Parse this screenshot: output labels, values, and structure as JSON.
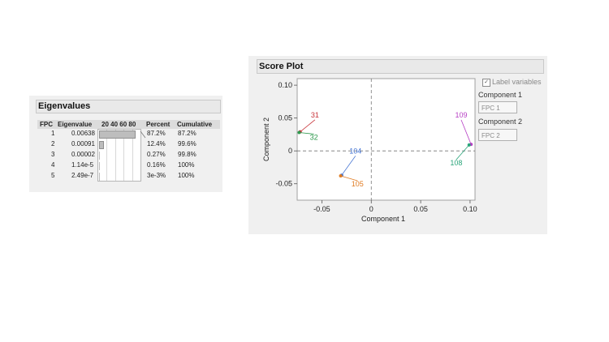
{
  "eigen": {
    "title": "Eigenvalues",
    "headers": {
      "fpc": "FPC",
      "eigenvalue": "Eigenvalue",
      "bar_scale": "20 40 60 80",
      "percent": "Percent",
      "cumulative": "Cumulative"
    },
    "rows": [
      {
        "fpc": "1",
        "eigenvalue": "0.00638",
        "percent": "87.2%",
        "cumulative": "87.2%",
        "pct_value": 87.2
      },
      {
        "fpc": "2",
        "eigenvalue": "0.00091",
        "percent": "12.4%",
        "cumulative": "99.6%",
        "pct_value": 12.4
      },
      {
        "fpc": "3",
        "eigenvalue": "0.00002",
        "percent": "0.27%",
        "cumulative": "99.8%",
        "pct_value": 0.27
      },
      {
        "fpc": "4",
        "eigenvalue": "1.14e-5",
        "percent": "0.16%",
        "cumulative": "100%",
        "pct_value": 0.16
      },
      {
        "fpc": "5",
        "eigenvalue": "2.49e-7",
        "percent": "3e-3%",
        "cumulative": "100%",
        "pct_value": 0.003
      }
    ]
  },
  "score": {
    "title": "Score Plot",
    "label_variables": "Label variables",
    "label_variables_checked": true,
    "component1_label": "Component 1",
    "component1_value": "FPC 1",
    "component2_label": "Component 2",
    "component2_value": "FPC 2"
  },
  "chart_data": {
    "type": "scatter",
    "xlabel": "Component 1",
    "ylabel": "Component 2",
    "xlim": [
      -0.075,
      0.105
    ],
    "ylim": [
      -0.075,
      0.11
    ],
    "xticks": [
      -0.05,
      0,
      0.05,
      0.1
    ],
    "xtick_labels": [
      "-0.05",
      "0",
      "0.05",
      "0.10"
    ],
    "yticks": [
      -0.05,
      0,
      0.05,
      0.1
    ],
    "ytick_labels": [
      "-0.05",
      "0",
      "0.05",
      "0.10"
    ],
    "reference_lines": {
      "x": 0,
      "y": 0,
      "style": "dashed"
    },
    "points": [
      {
        "label": "31",
        "x": -0.072,
        "y": 0.029,
        "color": "#c8343a",
        "label_x": -0.057,
        "label_y": 0.051
      },
      {
        "label": "32",
        "x": -0.073,
        "y": 0.028,
        "color": "#2f9a4e",
        "label_x": -0.058,
        "label_y": 0.017
      },
      {
        "label": "104",
        "x": -0.03,
        "y": -0.037,
        "color": "#3d6fd1",
        "label_x": -0.016,
        "label_y": -0.004
      },
      {
        "label": "105",
        "x": -0.031,
        "y": -0.038,
        "color": "#e07b22",
        "label_x": -0.014,
        "label_y": -0.054
      },
      {
        "label": "109",
        "x": 0.101,
        "y": 0.01,
        "color": "#b63fc4",
        "label_x": 0.091,
        "label_y": 0.051
      },
      {
        "label": "108",
        "x": 0.099,
        "y": 0.009,
        "color": "#2aa57a",
        "label_x": 0.086,
        "label_y": -0.022
      }
    ]
  }
}
